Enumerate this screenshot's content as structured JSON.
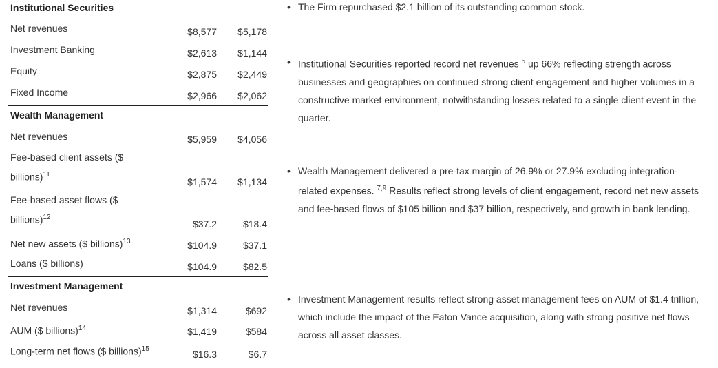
{
  "table": {
    "sections": [
      {
        "title": "Institutional Securities",
        "rows": [
          {
            "label": "Net revenues",
            "v1": "$8,577",
            "v2": "$5,178"
          },
          {
            "label": "Investment Banking",
            "v1": "$2,613",
            "v2": "$1,144"
          },
          {
            "label": "Equity",
            "v1": "$2,875",
            "v2": "$2,449"
          },
          {
            "label": "Fixed Income",
            "v1": "$2,966",
            "v2": "$2,062"
          }
        ]
      },
      {
        "title": "Wealth Management",
        "rows": [
          {
            "label": "Net revenues",
            "v1": "$5,959",
            "v2": "$4,056"
          },
          {
            "label": "Fee-based client assets ($ billions)",
            "sup": "11",
            "v1": "$1,574",
            "v2": "$1,134"
          },
          {
            "label": "Fee-based asset flows ($ billions)",
            "sup": "12",
            "v1": "$37.2",
            "v2": "$18.4"
          },
          {
            "label": "Net new assets ($ billions)",
            "sup": "13",
            "v1": "$104.9",
            "v2": "$37.1"
          },
          {
            "label": "Loans ($ billions)",
            "v1": "$104.9",
            "v2": "$82.5"
          }
        ]
      },
      {
        "title": "Investment Management",
        "rows": [
          {
            "label": "Net revenues",
            "v1": "$1,314",
            "v2": "$692"
          },
          {
            "label": "AUM ($ billions)",
            "sup": "14",
            "v1": "$1,419",
            "v2": "$584"
          },
          {
            "label": "Long-term net flows ($ billions)",
            "sup": "15",
            "v1": "$16.3",
            "v2": "$6.7"
          }
        ]
      }
    ]
  },
  "bullets": [
    {
      "before": "The Firm repurchased $2.1 billion of its outstanding common stock.",
      "sup": "",
      "after": ""
    },
    {
      "before": "Institutional Securities reported record net revenues ",
      "sup": "5",
      "after": " up 66% reflecting strength across businesses and geographies on continued strong client engagement and higher volumes in a constructive market environment, notwithstanding losses related to a single client event in the quarter."
    },
    {
      "before": "Wealth Management delivered a pre-tax margin of 26.9% or 27.9% excluding integration-related expenses. ",
      "sup": "7,9",
      "after": " Results reflect strong levels of client engagement, record net new assets and fee-based flows of $105 billion and $37 billion, respectively, and growth in bank lending."
    },
    {
      "before": "Investment Management results reflect strong asset management fees on AUM of $1.4 trillion, which include the impact of the Eaton Vance acquisition, along with strong positive net flows across all asset classes.",
      "sup": "",
      "after": ""
    }
  ]
}
